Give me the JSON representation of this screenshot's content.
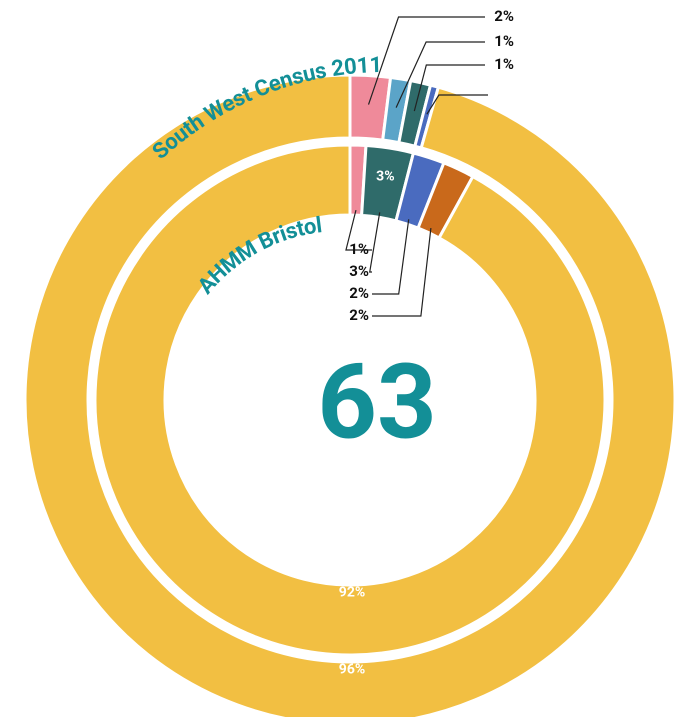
{
  "chart_data": {
    "type": "donut",
    "center_value": 63,
    "series": [
      {
        "name": "South West Census 2011",
        "values": [
          2,
          1,
          1,
          0.4,
          96
        ],
        "value_labels": [
          "2%",
          "1%",
          "1%",
          null,
          "96%"
        ],
        "colors": [
          "#ef8a9a",
          "#5ba4c8",
          "#2f6b6a",
          "#4a6bbf",
          "#f2bf42"
        ]
      },
      {
        "name": "AHMM Bristol",
        "values": [
          1,
          3,
          2,
          2,
          92
        ],
        "value_labels": [
          "1%",
          "3%",
          "2%",
          "2%",
          "92%"
        ],
        "colors": [
          "#ef8a9a",
          "#2f6b6a",
          "#4a6bbf",
          "#c9691b",
          "#f2bf42"
        ]
      }
    ]
  }
}
